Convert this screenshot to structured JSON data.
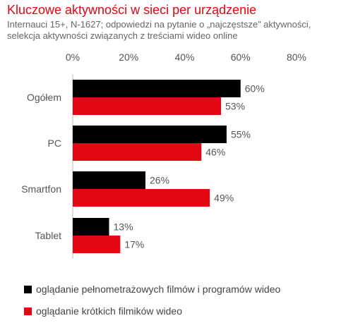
{
  "title": "Kluczowe aktywności w sieci per urządzenie",
  "subtitle_lines": [
    "Internauci 15+, N-1627; odpowiedzi  na pytanie o „najczęstsze” aktywności,",
    "selekcja aktywności związanych z treściami wideo online"
  ],
  "colors": {
    "title": "#e30613",
    "series_1": "#000000",
    "series_2": "#e30613"
  },
  "chart_data": {
    "type": "bar",
    "orientation": "horizontal",
    "categories": [
      "Ogółem",
      "PC",
      "Smartfon",
      "Tablet"
    ],
    "series": [
      {
        "name": "oglądanie pełnometrażowych filmów i programów wideo",
        "values": [
          60,
          55,
          26,
          13
        ],
        "labels": [
          "60%",
          "55%",
          "26%",
          "13%"
        ],
        "color": "#000000"
      },
      {
        "name": "oglądanie krótkich filmików wideo",
        "values": [
          53,
          46,
          49,
          17
        ],
        "labels": [
          "53%",
          "46%",
          "49%",
          "17%"
        ],
        "color": "#e30613"
      }
    ],
    "x_ticks": [
      0,
      20,
      40,
      60,
      80
    ],
    "x_tick_labels": [
      "0%",
      "20%",
      "40%",
      "60%",
      "80%"
    ],
    "xlim": [
      0,
      80
    ],
    "grid": false,
    "legend_position": "bottom-left"
  }
}
